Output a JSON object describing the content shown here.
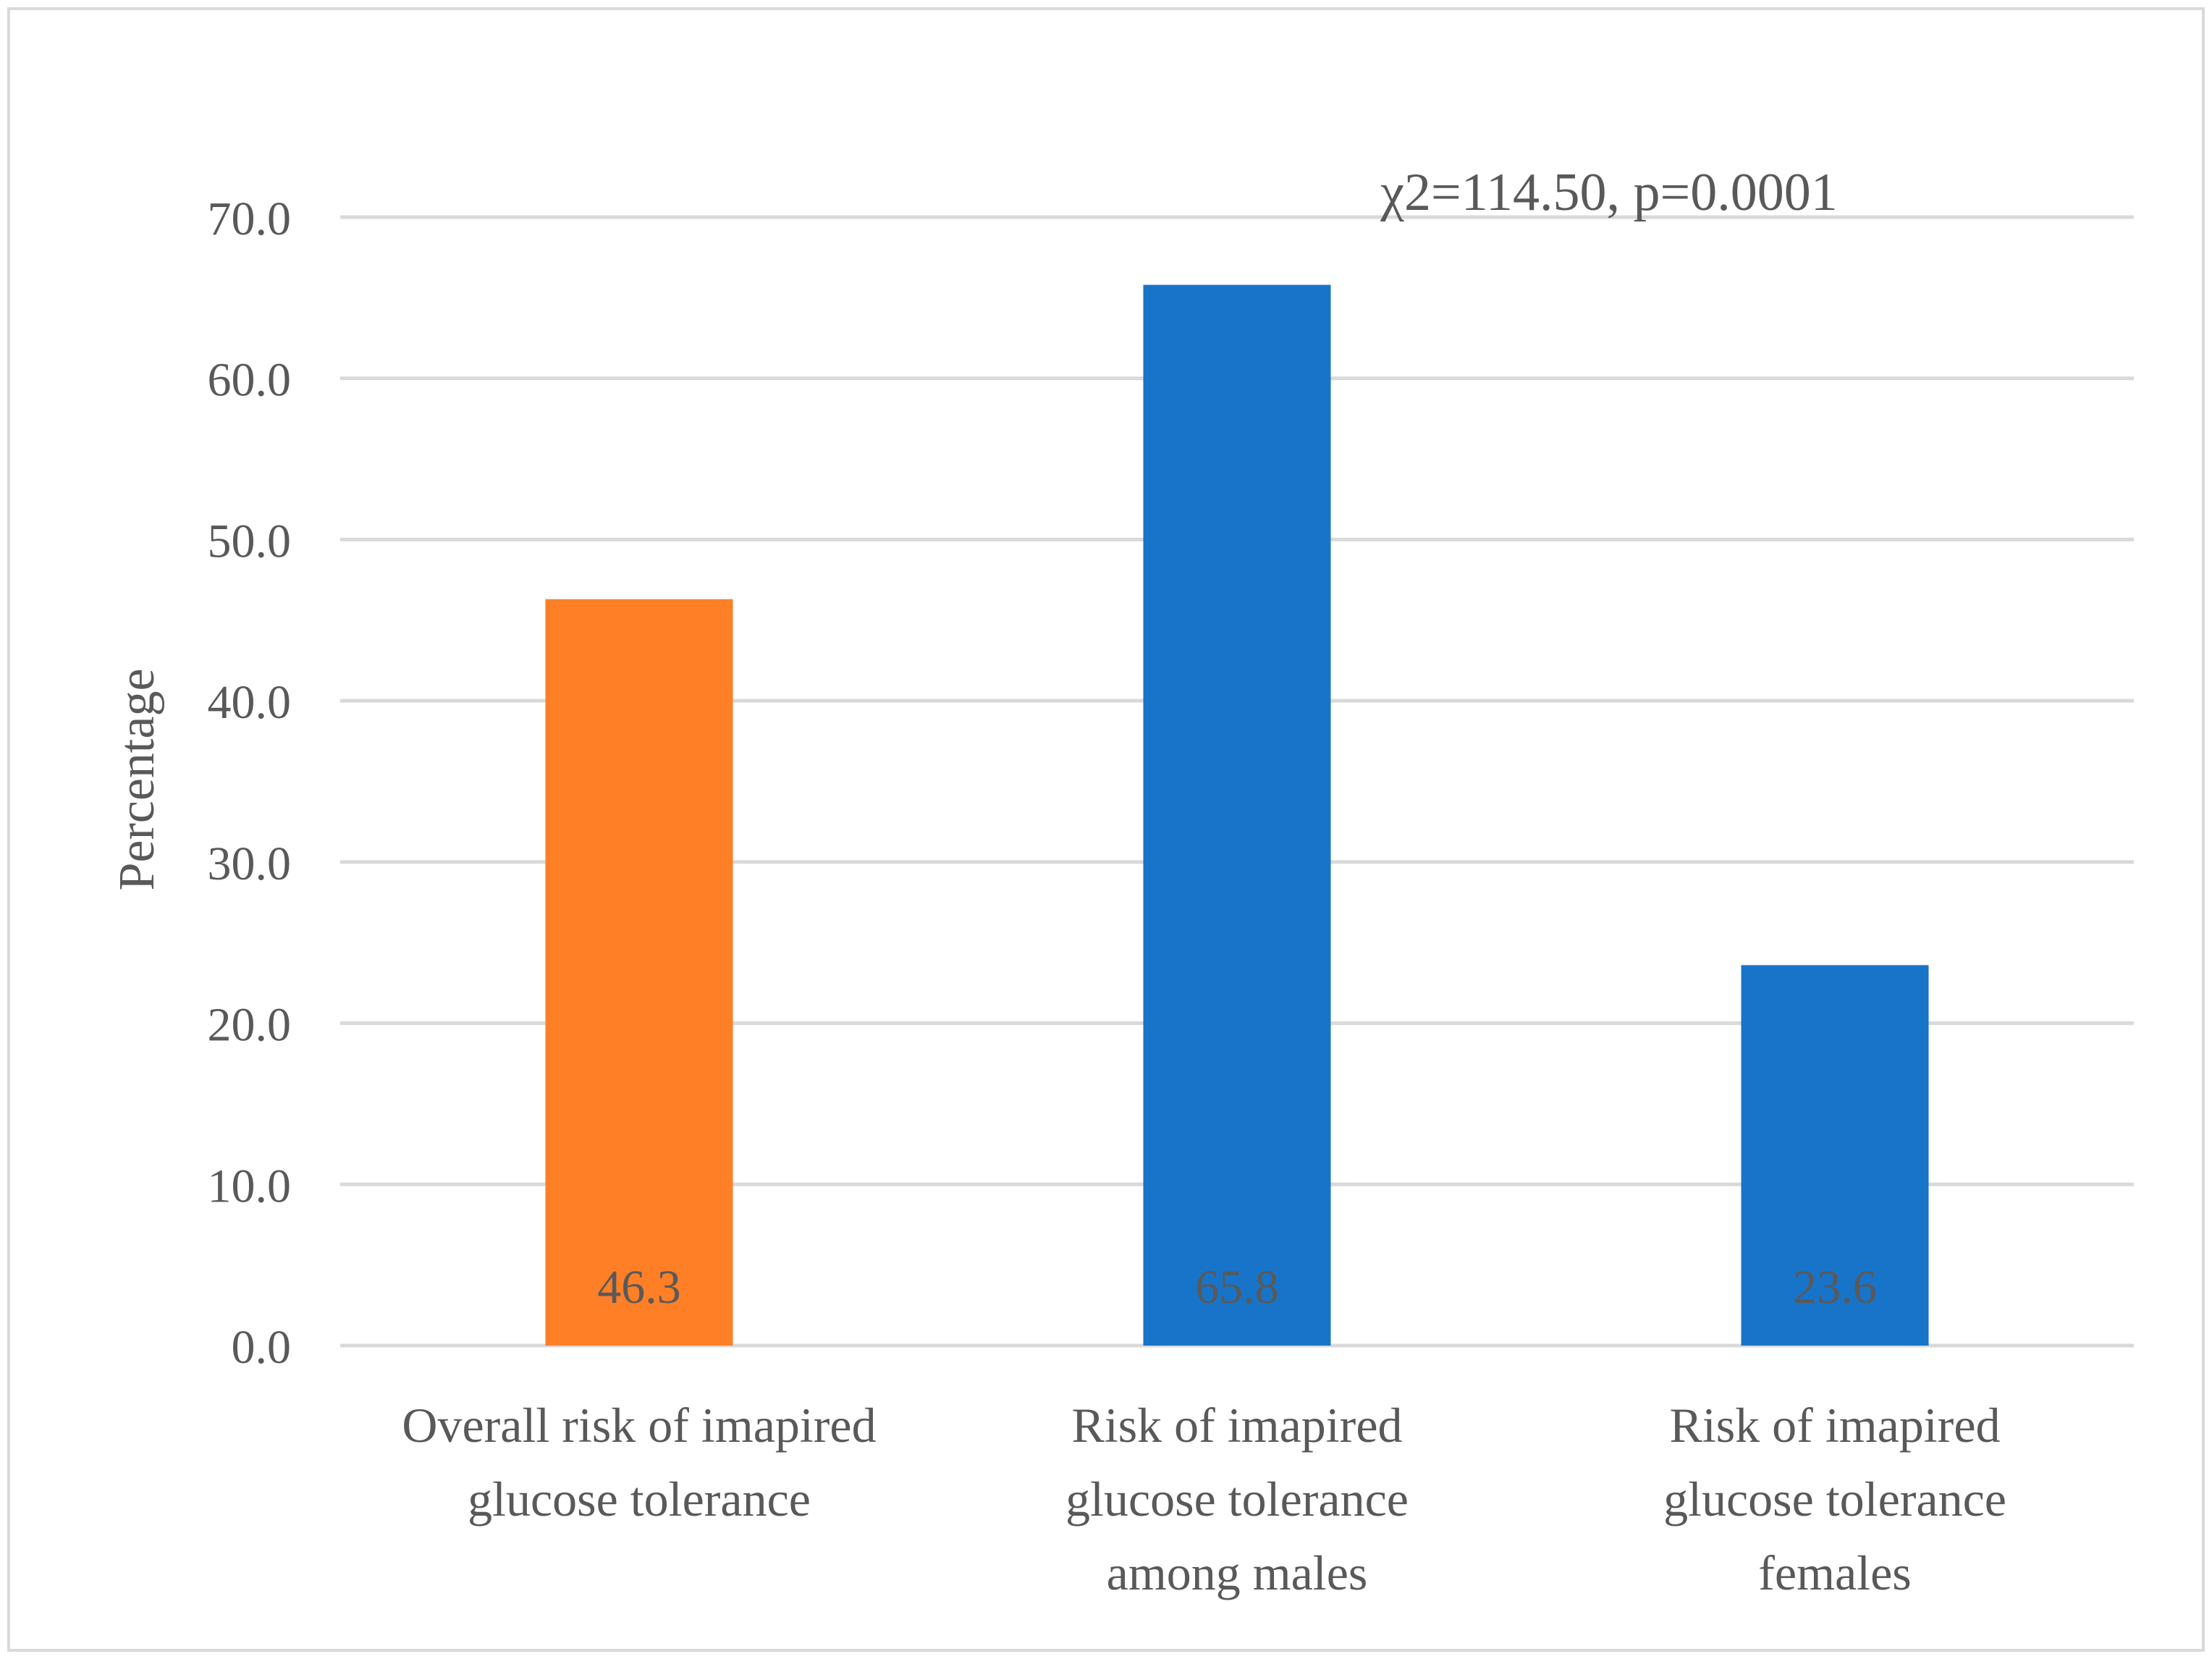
{
  "chart_data": {
    "type": "bar",
    "title": "",
    "xlabel": "",
    "ylabel": "Percentage",
    "ylim": [
      0,
      70
    ],
    "yticks": [
      "0.0",
      "10.0",
      "20.0",
      "30.0",
      "40.0",
      "50.0",
      "60.0",
      "70.0"
    ],
    "grid": true,
    "categories": [
      [
        "Overall risk of imapired",
        "glucose tolerance"
      ],
      [
        "Risk of imapired",
        "glucose tolerance",
        "among males"
      ],
      [
        "Risk of imapired",
        "glucose tolerance",
        "females"
      ]
    ],
    "values": [
      46.3,
      65.8,
      23.6
    ],
    "data_labels": [
      "46.3",
      "65.8",
      "23.6"
    ],
    "colors": [
      "#FF7F27",
      "#1874C8",
      "#1874C8"
    ],
    "annotation": "χ2=114.50, p=0.0001",
    "text_color": "#595959",
    "grid_color": "#D9D9D9"
  }
}
